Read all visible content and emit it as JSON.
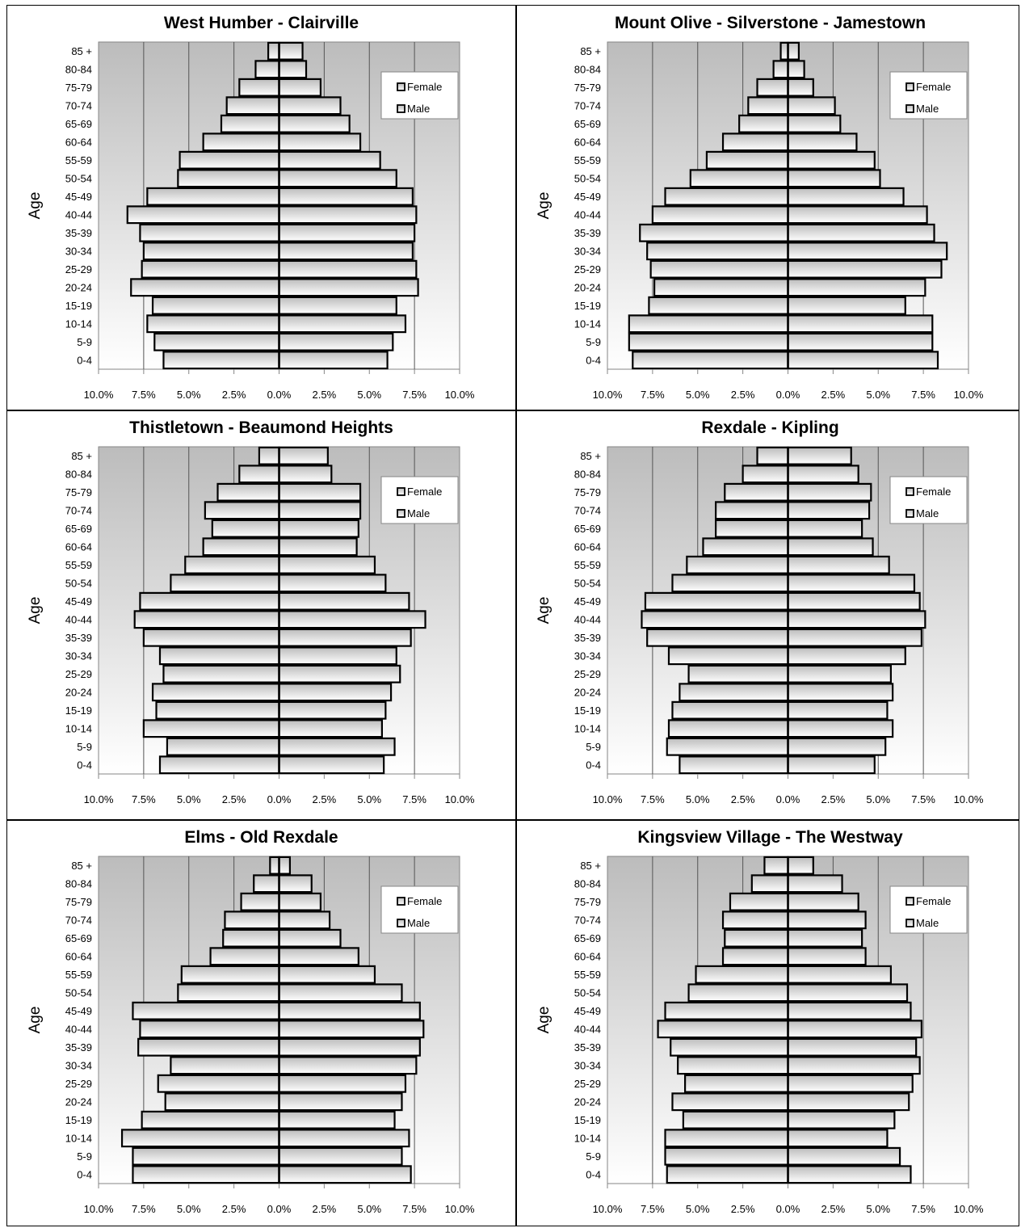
{
  "chart_data": [
    {
      "type": "bar",
      "title": "West Humber - Clairville",
      "ylabel": "Age",
      "xlim": [
        -10,
        10
      ],
      "xticks": [
        "10.0%",
        "7.5%",
        "5.0%",
        "2.5%",
        "0.0%",
        "2.5%",
        "5.0%",
        "7.5%",
        "10.0%"
      ],
      "categories": [
        "0-4",
        "5-9",
        "10-14",
        "15-19",
        "20-24",
        "25-29",
        "30-34",
        "35-39",
        "40-44",
        "45-49",
        "50-54",
        "55-59",
        "60-64",
        "65-69",
        "70-74",
        "75-79",
        "80-84",
        "85 +"
      ],
      "series": [
        {
          "name": "Female",
          "values": [
            6.0,
            6.3,
            7.0,
            6.5,
            7.7,
            7.6,
            7.4,
            7.5,
            7.6,
            7.4,
            6.5,
            5.6,
            4.5,
            3.9,
            3.4,
            2.3,
            1.5,
            1.3
          ]
        },
        {
          "name": "Male",
          "values": [
            6.4,
            6.9,
            7.3,
            7.0,
            8.2,
            7.6,
            7.5,
            7.7,
            8.4,
            7.3,
            5.6,
            5.5,
            4.2,
            3.2,
            2.9,
            2.2,
            1.3,
            0.6
          ]
        }
      ],
      "legend": "top-right",
      "grid": true
    },
    {
      "type": "bar",
      "title": "Mount Olive - Silverstone - Jamestown",
      "ylabel": "Age",
      "xlim": [
        -10,
        10
      ],
      "xticks": [
        "10.0%",
        "7.5%",
        "5.0%",
        "2.5%",
        "0.0%",
        "2.5%",
        "5.0%",
        "7.5%",
        "10.0%"
      ],
      "categories": [
        "0-4",
        "5-9",
        "10-14",
        "15-19",
        "20-24",
        "25-29",
        "30-34",
        "35-39",
        "40-44",
        "45-49",
        "50-54",
        "55-59",
        "60-64",
        "65-69",
        "70-74",
        "75-79",
        "80-84",
        "85 +"
      ],
      "series": [
        {
          "name": "Female",
          "values": [
            8.3,
            8.0,
            8.0,
            6.5,
            7.6,
            8.5,
            8.8,
            8.1,
            7.7,
            6.4,
            5.1,
            4.8,
            3.8,
            2.9,
            2.6,
            1.4,
            0.9,
            0.6
          ]
        },
        {
          "name": "Male",
          "values": [
            8.6,
            8.8,
            8.8,
            7.7,
            7.4,
            7.6,
            7.8,
            8.2,
            7.5,
            6.8,
            5.4,
            4.5,
            3.6,
            2.7,
            2.2,
            1.7,
            0.8,
            0.4
          ]
        }
      ],
      "legend": "top-right",
      "grid": true
    },
    {
      "type": "bar",
      "title": "Thistletown - Beaumond Heights",
      "ylabel": "Age",
      "xlim": [
        -10,
        10
      ],
      "xticks": [
        "10.0%",
        "7.5%",
        "5.0%",
        "2.5%",
        "0.0%",
        "2.5%",
        "5.0%",
        "7.5%",
        "10.0%"
      ],
      "categories": [
        "0-4",
        "5-9",
        "10-14",
        "15-19",
        "20-24",
        "25-29",
        "30-34",
        "35-39",
        "40-44",
        "45-49",
        "50-54",
        "55-59",
        "60-64",
        "65-69",
        "70-74",
        "75-79",
        "80-84",
        "85 +"
      ],
      "series": [
        {
          "name": "Female",
          "values": [
            5.8,
            6.4,
            5.7,
            5.9,
            6.2,
            6.7,
            6.5,
            7.3,
            8.1,
            7.2,
            5.9,
            5.3,
            4.3,
            4.4,
            4.5,
            4.5,
            2.9,
            2.7
          ]
        },
        {
          "name": "Male",
          "values": [
            6.6,
            6.2,
            7.5,
            6.8,
            7.0,
            6.4,
            6.6,
            7.5,
            8.0,
            7.7,
            6.0,
            5.2,
            4.2,
            3.7,
            4.1,
            3.4,
            2.2,
            1.1
          ]
        }
      ],
      "legend": "top-right",
      "grid": true
    },
    {
      "type": "bar",
      "title": "Rexdale - Kipling",
      "ylabel": "Age",
      "xlim": [
        -10,
        10
      ],
      "xticks": [
        "10.0%",
        "7.5%",
        "5.0%",
        "2.5%",
        "0.0%",
        "2.5%",
        "5.0%",
        "7.5%",
        "10.0%"
      ],
      "categories": [
        "0-4",
        "5-9",
        "10-14",
        "15-19",
        "20-24",
        "25-29",
        "30-34",
        "35-39",
        "40-44",
        "45-49",
        "50-54",
        "55-59",
        "60-64",
        "65-69",
        "70-74",
        "75-79",
        "80-84",
        "85 +"
      ],
      "series": [
        {
          "name": "Female",
          "values": [
            4.8,
            5.4,
            5.8,
            5.5,
            5.8,
            5.7,
            6.5,
            7.4,
            7.6,
            7.3,
            7.0,
            5.6,
            4.7,
            4.1,
            4.5,
            4.6,
            3.9,
            3.5
          ]
        },
        {
          "name": "Male",
          "values": [
            6.0,
            6.7,
            6.6,
            6.4,
            6.0,
            5.5,
            6.6,
            7.8,
            8.1,
            7.9,
            6.4,
            5.6,
            4.7,
            4.0,
            4.0,
            3.5,
            2.5,
            1.7
          ]
        }
      ],
      "legend": "top-right",
      "grid": true
    },
    {
      "type": "bar",
      "title": "Elms - Old Rexdale",
      "ylabel": "Age",
      "xlim": [
        -10,
        10
      ],
      "xticks": [
        "10.0%",
        "7.5%",
        "5.0%",
        "2.5%",
        "0.0%",
        "2.5%",
        "5.0%",
        "7.5%",
        "10.0%"
      ],
      "categories": [
        "0-4",
        "5-9",
        "10-14",
        "15-19",
        "20-24",
        "25-29",
        "30-34",
        "35-39",
        "40-44",
        "45-49",
        "50-54",
        "55-59",
        "60-64",
        "65-69",
        "70-74",
        "75-79",
        "80-84",
        "85 +"
      ],
      "series": [
        {
          "name": "Female",
          "values": [
            7.3,
            6.8,
            7.2,
            6.4,
            6.8,
            7.0,
            7.6,
            7.8,
            8.0,
            7.8,
            6.8,
            5.3,
            4.4,
            3.4,
            2.8,
            2.3,
            1.8,
            0.6
          ]
        },
        {
          "name": "Male",
          "values": [
            8.1,
            8.1,
            8.7,
            7.6,
            6.3,
            6.7,
            6.0,
            7.8,
            7.7,
            8.1,
            5.6,
            5.4,
            3.8,
            3.1,
            3.0,
            2.1,
            1.4,
            0.5
          ]
        }
      ],
      "legend": "top-right",
      "grid": true
    },
    {
      "type": "bar",
      "title": "Kingsview Village - The Westway",
      "ylabel": "Age",
      "xlim": [
        -10,
        10
      ],
      "xticks": [
        "10.0%",
        "7.5%",
        "5.0%",
        "2.5%",
        "0.0%",
        "2.5%",
        "5.0%",
        "7.5%",
        "10.0%"
      ],
      "categories": [
        "0-4",
        "5-9",
        "10-14",
        "15-19",
        "20-24",
        "25-29",
        "30-34",
        "35-39",
        "40-44",
        "45-49",
        "50-54",
        "55-59",
        "60-64",
        "65-69",
        "70-74",
        "75-79",
        "80-84",
        "85 +"
      ],
      "series": [
        {
          "name": "Female",
          "values": [
            6.8,
            6.2,
            5.5,
            5.9,
            6.7,
            6.9,
            7.3,
            7.1,
            7.4,
            6.8,
            6.6,
            5.7,
            4.3,
            4.1,
            4.3,
            3.9,
            3.0,
            1.4
          ]
        },
        {
          "name": "Male",
          "values": [
            6.7,
            6.8,
            6.8,
            5.8,
            6.4,
            5.7,
            6.1,
            6.5,
            7.2,
            6.8,
            5.5,
            5.1,
            3.6,
            3.5,
            3.6,
            3.2,
            2.0,
            1.3
          ]
        }
      ],
      "legend": "top-right",
      "grid": true
    }
  ]
}
